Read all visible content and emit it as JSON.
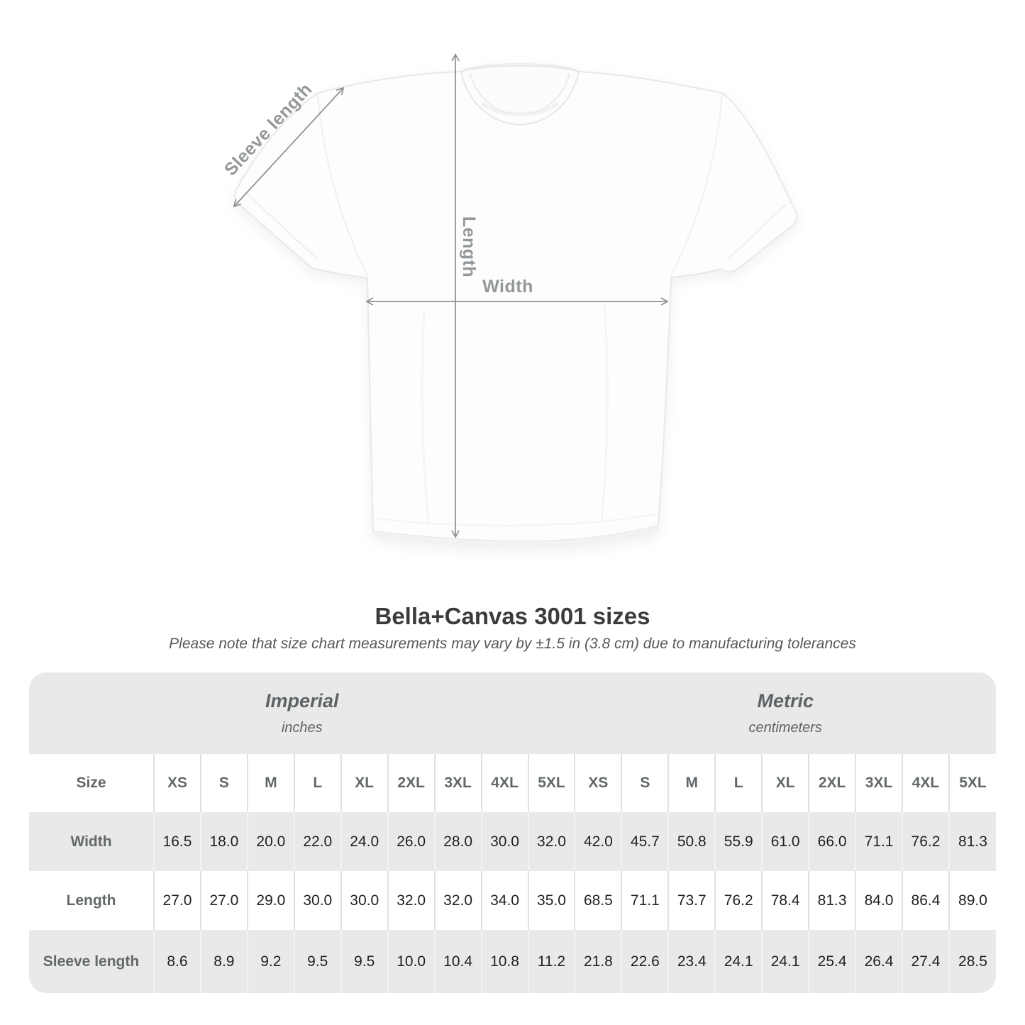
{
  "title": "Bella+Canvas 3001 sizes",
  "subtitle": "Please note that size chart measurements may vary by ±1.5 in (3.8 cm) due to manufacturing tolerances",
  "diagram": {
    "sleeve_label": "Sleeve length",
    "length_label": "Length",
    "width_label": "Width"
  },
  "table": {
    "size_header": "Size",
    "groups": [
      {
        "label": "Imperial",
        "unit": "inches"
      },
      {
        "label": "Metric",
        "unit": "centimeters"
      }
    ],
    "sizes": [
      "XS",
      "S",
      "M",
      "L",
      "XL",
      "2XL",
      "3XL",
      "4XL",
      "5XL"
    ],
    "rows": [
      {
        "label": "Width",
        "imperial": [
          "16.5",
          "18.0",
          "20.0",
          "22.0",
          "24.0",
          "26.0",
          "28.0",
          "30.0",
          "32.0"
        ],
        "metric": [
          "42.0",
          "45.7",
          "50.8",
          "55.9",
          "61.0",
          "66.0",
          "71.1",
          "76.2",
          "81.3"
        ]
      },
      {
        "label": "Length",
        "imperial": [
          "27.0",
          "27.0",
          "29.0",
          "30.0",
          "30.0",
          "32.0",
          "32.0",
          "34.0",
          "35.0"
        ],
        "metric": [
          "68.5",
          "71.1",
          "73.7",
          "76.2",
          "78.4",
          "81.3",
          "84.0",
          "86.4",
          "89.0"
        ]
      },
      {
        "label": "Sleeve length",
        "imperial": [
          "8.6",
          "8.9",
          "9.2",
          "9.5",
          "9.5",
          "10.0",
          "10.4",
          "10.8",
          "11.2"
        ],
        "metric": [
          "21.8",
          "22.6",
          "23.4",
          "24.1",
          "24.1",
          "25.4",
          "26.4",
          "27.4",
          "28.5"
        ]
      }
    ]
  },
  "colors": {
    "row_gray": "#e9e9e9",
    "header_text_gray": "#5e6366",
    "label_gray": "#63686b",
    "value_dark": "#1f2022",
    "annotation_gray": "#94989a",
    "arrow_gray": "#8f9396"
  },
  "chart_data": {
    "type": "table",
    "title": "Bella+Canvas 3001 sizes",
    "note": "Please note that size chart measurements may vary by ±1.5 in (3.8 cm) due to manufacturing tolerances",
    "column_groups": [
      "Imperial (inches)",
      "Metric (centimeters)"
    ],
    "columns": [
      "Size",
      "XS",
      "S",
      "M",
      "L",
      "XL",
      "2XL",
      "3XL",
      "4XL",
      "5XL",
      "XS",
      "S",
      "M",
      "L",
      "XL",
      "2XL",
      "3XL",
      "4XL",
      "5XL"
    ],
    "rows": [
      [
        "Width",
        16.5,
        18.0,
        20.0,
        22.0,
        24.0,
        26.0,
        28.0,
        30.0,
        32.0,
        42.0,
        45.7,
        50.8,
        55.9,
        61.0,
        66.0,
        71.1,
        76.2,
        81.3
      ],
      [
        "Length",
        27.0,
        27.0,
        29.0,
        30.0,
        30.0,
        32.0,
        32.0,
        34.0,
        35.0,
        68.5,
        71.1,
        73.7,
        76.2,
        78.4,
        81.3,
        84.0,
        86.4,
        89.0
      ],
      [
        "Sleeve length",
        8.6,
        8.9,
        9.2,
        9.5,
        9.5,
        10.0,
        10.4,
        10.8,
        11.2,
        21.8,
        22.6,
        23.4,
        24.1,
        24.1,
        25.4,
        26.4,
        27.4,
        28.5
      ]
    ]
  }
}
